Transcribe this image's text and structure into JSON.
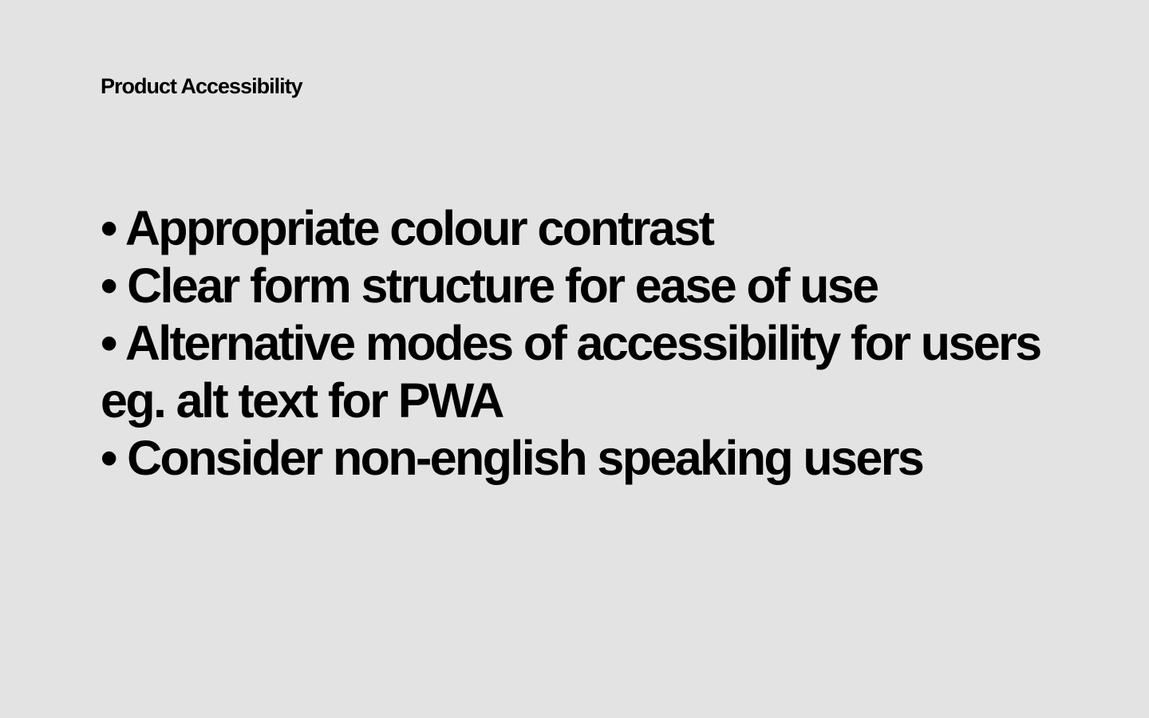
{
  "slide": {
    "title": "Product Accessibility",
    "lines": [
      "• Appropriate colour contrast",
      "• Clear form structure for ease of use",
      "• Alternative modes of accessibility for users",
      "eg. alt text for PWA",
      "• Consider non-english speaking users"
    ]
  },
  "colors": {
    "background": "#e3e3e3",
    "text": "#000000"
  }
}
